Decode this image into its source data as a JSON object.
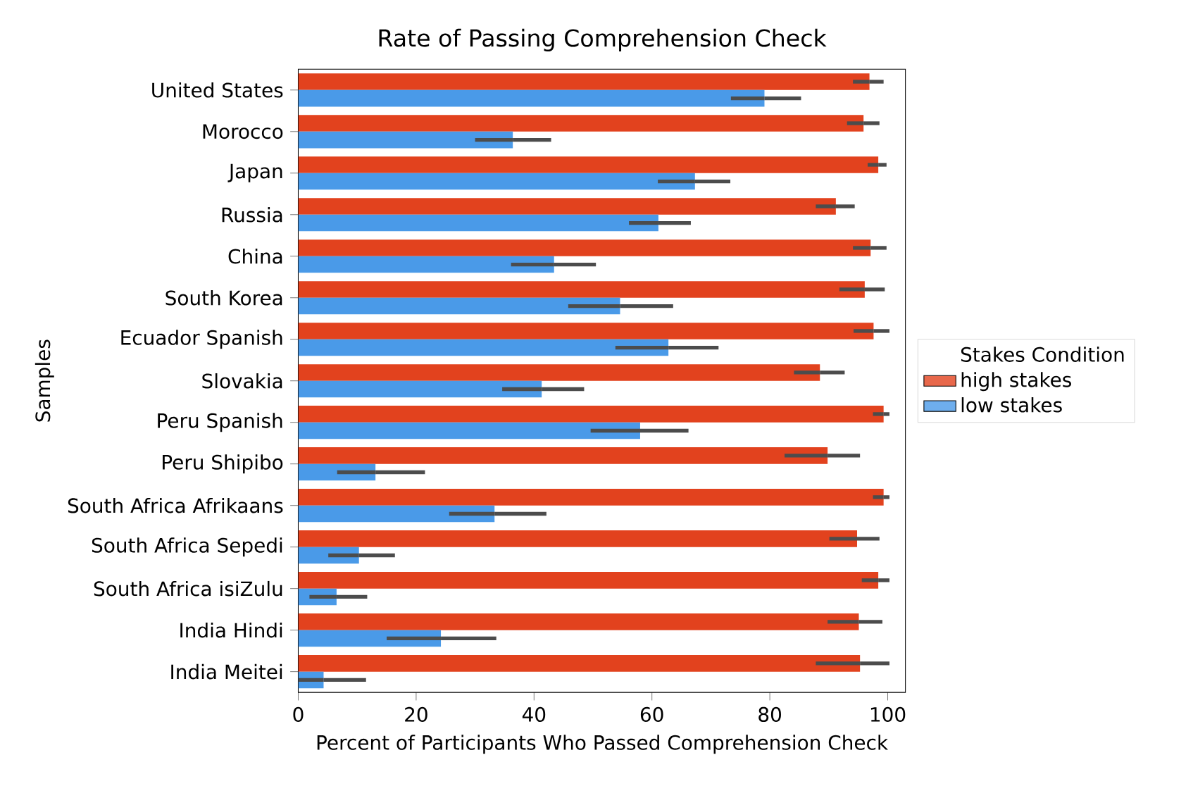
{
  "chart_data": {
    "type": "bar",
    "orientation": "horizontal",
    "title": "Rate of Passing Comprehension Check",
    "xlabel": "Percent of Participants Who Passed Comprehension Check",
    "ylabel": "Samples",
    "legend_title": "Stakes Condition",
    "legend": "right",
    "categories": [
      "United States",
      "Morocco",
      "Japan",
      "Russia",
      "China",
      "South Korea",
      "Ecuador Spanish",
      "Slovakia",
      "Peru Spanish",
      "Peru Shipibo",
      "South Africa Afrikaans",
      "South Africa Sepedi",
      "South Africa isiZulu",
      "India Hindi",
      "India Meitei"
    ],
    "xlim": [
      0,
      103
    ],
    "xticks": [
      0,
      20,
      40,
      60,
      80,
      100
    ],
    "series": [
      {
        "name": "high stakes",
        "color": "#e2421e",
        "values": [
          96.9,
          95.9,
          98.4,
          91.2,
          97.1,
          96.1,
          97.6,
          88.5,
          99.3,
          89.8,
          99.3,
          94.8,
          98.4,
          95.1,
          95.3
        ],
        "errors": [
          [
            94.1,
            99.3
          ],
          [
            93.1,
            98.6
          ],
          [
            96.6,
            99.8
          ],
          [
            87.8,
            94.4
          ],
          [
            94.1,
            99.8
          ],
          [
            91.8,
            99.5
          ],
          [
            94.2,
            100.3
          ],
          [
            84.1,
            92.7
          ],
          [
            97.5,
            100.3
          ],
          [
            82.5,
            95.3
          ],
          [
            97.5,
            100.3
          ],
          [
            90.1,
            98.6
          ],
          [
            95.6,
            100.3
          ],
          [
            89.8,
            99.1
          ],
          [
            87.8,
            100.3
          ]
        ]
      },
      {
        "name": "low stakes",
        "color": "#4a9ae8",
        "values": [
          79.1,
          36.4,
          67.3,
          61.1,
          43.4,
          54.6,
          62.8,
          41.3,
          58.0,
          13.1,
          33.3,
          10.3,
          6.5,
          24.2,
          4.3
        ],
        "errors": [
          [
            73.4,
            85.3
          ],
          [
            30.0,
            42.9
          ],
          [
            61.0,
            73.3
          ],
          [
            56.1,
            66.6
          ],
          [
            36.1,
            50.5
          ],
          [
            45.8,
            63.6
          ],
          [
            53.8,
            71.3
          ],
          [
            34.6,
            48.5
          ],
          [
            49.6,
            66.2
          ],
          [
            6.6,
            21.5
          ],
          [
            25.6,
            42.1
          ],
          [
            5.1,
            16.4
          ],
          [
            1.9,
            11.7
          ],
          [
            15.0,
            33.6
          ],
          [
            0.0,
            11.5
          ]
        ]
      }
    ]
  }
}
